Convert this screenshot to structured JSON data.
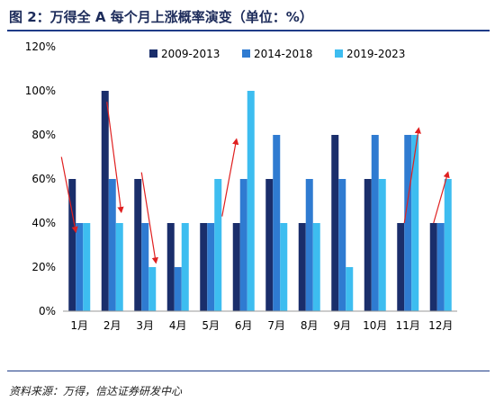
{
  "figure": {
    "title": "图 2：万得全 A 每个月上涨概率演变（单位：%）",
    "source": "资料来源：万得，信达证券研发中心"
  },
  "colors": {
    "accent": "#1f3c88",
    "series": [
      "#1a2e6b",
      "#2f7bd1",
      "#3dbdf0"
    ],
    "arrow": "#e02020"
  },
  "chart_data": {
    "type": "bar",
    "categories": [
      "1月",
      "2月",
      "3月",
      "4月",
      "5月",
      "6月",
      "7月",
      "8月",
      "9月",
      "10月",
      "11月",
      "12月"
    ],
    "series": [
      {
        "name": "2009-2013",
        "values": [
          60,
          100,
          60,
          40,
          40,
          40,
          60,
          40,
          80,
          60,
          40,
          40
        ]
      },
      {
        "name": "2014-2018",
        "values": [
          40,
          60,
          40,
          20,
          40,
          60,
          80,
          60,
          60,
          80,
          80,
          40
        ]
      },
      {
        "name": "2019-2023",
        "values": [
          40,
          40,
          20,
          40,
          60,
          100,
          40,
          40,
          20,
          60,
          80,
          60
        ]
      }
    ],
    "ylim": [
      0,
      120
    ],
    "yticks": [
      "0%",
      "20%",
      "40%",
      "60%",
      "80%",
      "100%",
      "120%"
    ],
    "legend_position": "top",
    "grid": false,
    "annotations": [
      {
        "type": "arrow",
        "from": [
          "1月",
          70
        ],
        "to": [
          "1月",
          36
        ]
      },
      {
        "type": "arrow",
        "from": [
          "2月",
          95
        ],
        "to": [
          "2月",
          45
        ]
      },
      {
        "type": "arrow",
        "from": [
          "3月",
          63
        ],
        "to": [
          "3月",
          22
        ]
      },
      {
        "type": "arrow",
        "from": [
          "6月",
          43
        ],
        "to": [
          "6月",
          78
        ]
      },
      {
        "type": "arrow",
        "from": [
          "11月",
          40
        ],
        "to": [
          "11月",
          83
        ]
      },
      {
        "type": "arrow",
        "from": [
          "12月",
          40
        ],
        "to": [
          "12月",
          63
        ]
      }
    ]
  }
}
